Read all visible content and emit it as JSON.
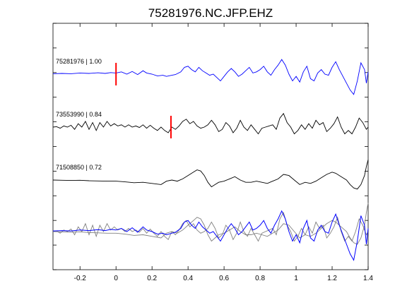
{
  "chart_data": {
    "type": "line",
    "title": "75281976.NC.JFP.EHZ",
    "xlabel": "",
    "ylabel": "",
    "xlim": [
      -0.35,
      1.4
    ],
    "x_ticks": [
      -0.2,
      0,
      0.2,
      0.4,
      0.6,
      0.8,
      1,
      1.2,
      1.4
    ],
    "x_tick_labels": [
      "-0.2",
      "0",
      "0.2",
      "0.4",
      "0.6",
      "0.8",
      "1",
      "1.2",
      "1.4"
    ],
    "grid": false,
    "colors": {
      "reference": "#0000ff",
      "other": "#000000",
      "overlay_gray": "#808080",
      "pick": "#ff0000"
    },
    "traces": [
      {
        "label": "75281976 | 1.00",
        "color": "#0000ff",
        "pick_time": 0.0,
        "points": [
          [
            -0.35,
            0.02
          ],
          [
            -0.3,
            0.03
          ],
          [
            -0.25,
            0.02
          ],
          [
            -0.2,
            0.05
          ],
          [
            -0.15,
            0.03
          ],
          [
            -0.1,
            0.06
          ],
          [
            -0.06,
            0.03
          ],
          [
            -0.03,
            0.07
          ],
          [
            0.0,
            0.05
          ],
          [
            0.03,
            0.1
          ],
          [
            0.06,
            0.0
          ],
          [
            0.09,
            0.12
          ],
          [
            0.12,
            -0.02
          ],
          [
            0.15,
            0.15
          ],
          [
            0.17,
            0.05
          ],
          [
            0.2,
            0.0
          ],
          [
            0.23,
            -0.08
          ],
          [
            0.26,
            -0.05
          ],
          [
            0.28,
            -0.1
          ],
          [
            0.31,
            -0.05
          ],
          [
            0.33,
            -0.02
          ],
          [
            0.36,
            0.1
          ],
          [
            0.38,
            0.3
          ],
          [
            0.4,
            0.35
          ],
          [
            0.42,
            0.2
          ],
          [
            0.44,
            0.1
          ],
          [
            0.46,
            0.3
          ],
          [
            0.48,
            0.15
          ],
          [
            0.5,
            0.05
          ],
          [
            0.52,
            -0.05
          ],
          [
            0.54,
            0.0
          ],
          [
            0.56,
            -0.15
          ],
          [
            0.58,
            -0.3
          ],
          [
            0.6,
            -0.1
          ],
          [
            0.62,
            0.1
          ],
          [
            0.64,
            0.25
          ],
          [
            0.66,
            0.1
          ],
          [
            0.68,
            -0.1
          ],
          [
            0.7,
            0.0
          ],
          [
            0.72,
            0.15
          ],
          [
            0.74,
            0.3
          ],
          [
            0.76,
            0.05
          ],
          [
            0.78,
            0.1
          ],
          [
            0.8,
            0.2
          ],
          [
            0.82,
            0.35
          ],
          [
            0.84,
            0.1
          ],
          [
            0.86,
            -0.05
          ],
          [
            0.88,
            0.2
          ],
          [
            0.9,
            0.4
          ],
          [
            0.92,
            0.65
          ],
          [
            0.94,
            0.4
          ],
          [
            0.96,
            0.0
          ],
          [
            0.98,
            -0.3
          ],
          [
            1.0,
            -0.1
          ],
          [
            1.02,
            -0.35
          ],
          [
            1.04,
            0.1
          ],
          [
            1.06,
            0.35
          ],
          [
            1.08,
            -0.2
          ],
          [
            1.1,
            -0.3
          ],
          [
            1.12,
            0.05
          ],
          [
            1.14,
            0.2
          ],
          [
            1.16,
            0.0
          ],
          [
            1.18,
            -0.05
          ],
          [
            1.2,
            0.3
          ],
          [
            1.22,
            0.55
          ],
          [
            1.24,
            0.2
          ],
          [
            1.26,
            -0.1
          ],
          [
            1.28,
            -0.4
          ],
          [
            1.3,
            -0.7
          ],
          [
            1.32,
            -0.9
          ],
          [
            1.34,
            -0.3
          ],
          [
            1.36,
            0.5
          ],
          [
            1.38,
            0.2
          ],
          [
            1.39,
            -0.4
          ],
          [
            1.4,
            0.1
          ]
        ]
      },
      {
        "label": "73553990 | 0.84",
        "color": "#000000",
        "pick_time": 0.305,
        "points": [
          [
            -0.35,
            0.0
          ],
          [
            -0.33,
            0.02
          ],
          [
            -0.31,
            -0.05
          ],
          [
            -0.29,
            0.05
          ],
          [
            -0.27,
            0.0
          ],
          [
            -0.25,
            0.08
          ],
          [
            -0.23,
            -0.1
          ],
          [
            -0.21,
            0.15
          ],
          [
            -0.19,
            0.0
          ],
          [
            -0.17,
            0.25
          ],
          [
            -0.15,
            -0.1
          ],
          [
            -0.13,
            0.2
          ],
          [
            -0.11,
            -0.15
          ],
          [
            -0.09,
            0.2
          ],
          [
            -0.07,
            0.0
          ],
          [
            -0.05,
            0.25
          ],
          [
            -0.03,
            0.05
          ],
          [
            -0.01,
            0.15
          ],
          [
            0.01,
            0.05
          ],
          [
            0.03,
            0.1
          ],
          [
            0.05,
            0.0
          ],
          [
            0.07,
            0.1
          ],
          [
            0.09,
            0.0
          ],
          [
            0.11,
            0.05
          ],
          [
            0.13,
            -0.02
          ],
          [
            0.15,
            0.1
          ],
          [
            0.17,
            -0.05
          ],
          [
            0.19,
            0.08
          ],
          [
            0.21,
            -0.05
          ],
          [
            0.23,
            -0.15
          ],
          [
            0.25,
            0.0
          ],
          [
            0.27,
            -0.15
          ],
          [
            0.29,
            -0.25
          ],
          [
            0.31,
            0.0
          ],
          [
            0.33,
            -0.1
          ],
          [
            0.35,
            0.05
          ],
          [
            0.37,
            0.25
          ],
          [
            0.39,
            0.35
          ],
          [
            0.41,
            0.15
          ],
          [
            0.43,
            0.25
          ],
          [
            0.45,
            0.05
          ],
          [
            0.47,
            -0.05
          ],
          [
            0.49,
            0.0
          ],
          [
            0.51,
            0.1
          ],
          [
            0.53,
            0.3
          ],
          [
            0.55,
            0.1
          ],
          [
            0.57,
            -0.2
          ],
          [
            0.59,
            -0.1
          ],
          [
            0.61,
            0.2
          ],
          [
            0.63,
            0.05
          ],
          [
            0.65,
            -0.25
          ],
          [
            0.67,
            -0.05
          ],
          [
            0.69,
            0.3
          ],
          [
            0.71,
            0.0
          ],
          [
            0.73,
            -0.15
          ],
          [
            0.75,
            0.1
          ],
          [
            0.77,
            -0.1
          ],
          [
            0.79,
            -0.3
          ],
          [
            0.81,
            -0.05
          ],
          [
            0.83,
            0.0
          ],
          [
            0.85,
            0.05
          ],
          [
            0.87,
            0.1
          ],
          [
            0.89,
            -0.1
          ],
          [
            0.91,
            0.4
          ],
          [
            0.93,
            0.6
          ],
          [
            0.95,
            0.2
          ],
          [
            0.97,
            0.0
          ],
          [
            0.99,
            -0.3
          ],
          [
            1.01,
            -0.15
          ],
          [
            1.03,
            0.1
          ],
          [
            1.05,
            -0.1
          ],
          [
            1.07,
            0.15
          ],
          [
            1.09,
            -0.05
          ],
          [
            1.11,
            0.3
          ],
          [
            1.13,
            0.1
          ],
          [
            1.15,
            0.2
          ],
          [
            1.17,
            -0.2
          ],
          [
            1.19,
            -0.05
          ],
          [
            1.21,
            0.15
          ],
          [
            1.23,
            0.45
          ],
          [
            1.25,
            0.0
          ],
          [
            1.27,
            -0.3
          ],
          [
            1.29,
            -0.15
          ],
          [
            1.31,
            -0.3
          ],
          [
            1.33,
            0.0
          ],
          [
            1.35,
            0.4
          ],
          [
            1.37,
            0.2
          ],
          [
            1.39,
            -0.1
          ],
          [
            1.4,
            0.0
          ]
        ]
      },
      {
        "label": "71508850 | 0.72",
        "color": "#000000",
        "points": [
          [
            -0.35,
            0.0
          ],
          [
            -0.3,
            -0.01
          ],
          [
            -0.25,
            -0.02
          ],
          [
            -0.2,
            -0.01
          ],
          [
            -0.15,
            -0.03
          ],
          [
            -0.1,
            -0.04
          ],
          [
            -0.05,
            -0.05
          ],
          [
            0.0,
            -0.05
          ],
          [
            0.05,
            -0.08
          ],
          [
            0.1,
            -0.12
          ],
          [
            0.15,
            -0.1
          ],
          [
            0.2,
            -0.15
          ],
          [
            0.25,
            -0.2
          ],
          [
            0.28,
            -0.05
          ],
          [
            0.31,
            0.0
          ],
          [
            0.34,
            -0.05
          ],
          [
            0.37,
            0.05
          ],
          [
            0.4,
            0.2
          ],
          [
            0.43,
            0.35
          ],
          [
            0.45,
            0.45
          ],
          [
            0.47,
            0.4
          ],
          [
            0.49,
            0.2
          ],
          [
            0.51,
            -0.1
          ],
          [
            0.53,
            -0.3
          ],
          [
            0.55,
            -0.2
          ],
          [
            0.57,
            -0.1
          ],
          [
            0.6,
            -0.05
          ],
          [
            0.63,
            0.05
          ],
          [
            0.66,
            0.15
          ],
          [
            0.69,
            0.0
          ],
          [
            0.72,
            -0.1
          ],
          [
            0.75,
            -0.1
          ],
          [
            0.78,
            -0.05
          ],
          [
            0.81,
            -0.1
          ],
          [
            0.84,
            -0.15
          ],
          [
            0.87,
            -0.05
          ],
          [
            0.9,
            0.05
          ],
          [
            0.93,
            0.25
          ],
          [
            0.96,
            0.2
          ],
          [
            0.99,
            0.0
          ],
          [
            1.02,
            -0.2
          ],
          [
            1.05,
            -0.1
          ],
          [
            1.08,
            -0.15
          ],
          [
            1.11,
            -0.05
          ],
          [
            1.14,
            0.1
          ],
          [
            1.17,
            0.25
          ],
          [
            1.2,
            0.35
          ],
          [
            1.22,
            0.3
          ],
          [
            1.25,
            0.15
          ],
          [
            1.28,
            0.0
          ],
          [
            1.3,
            -0.2
          ],
          [
            1.32,
            -0.35
          ],
          [
            1.34,
            -0.4
          ],
          [
            1.36,
            -0.2
          ],
          [
            1.38,
            0.2
          ],
          [
            1.39,
            0.6
          ],
          [
            1.4,
            0.9
          ]
        ]
      }
    ]
  }
}
